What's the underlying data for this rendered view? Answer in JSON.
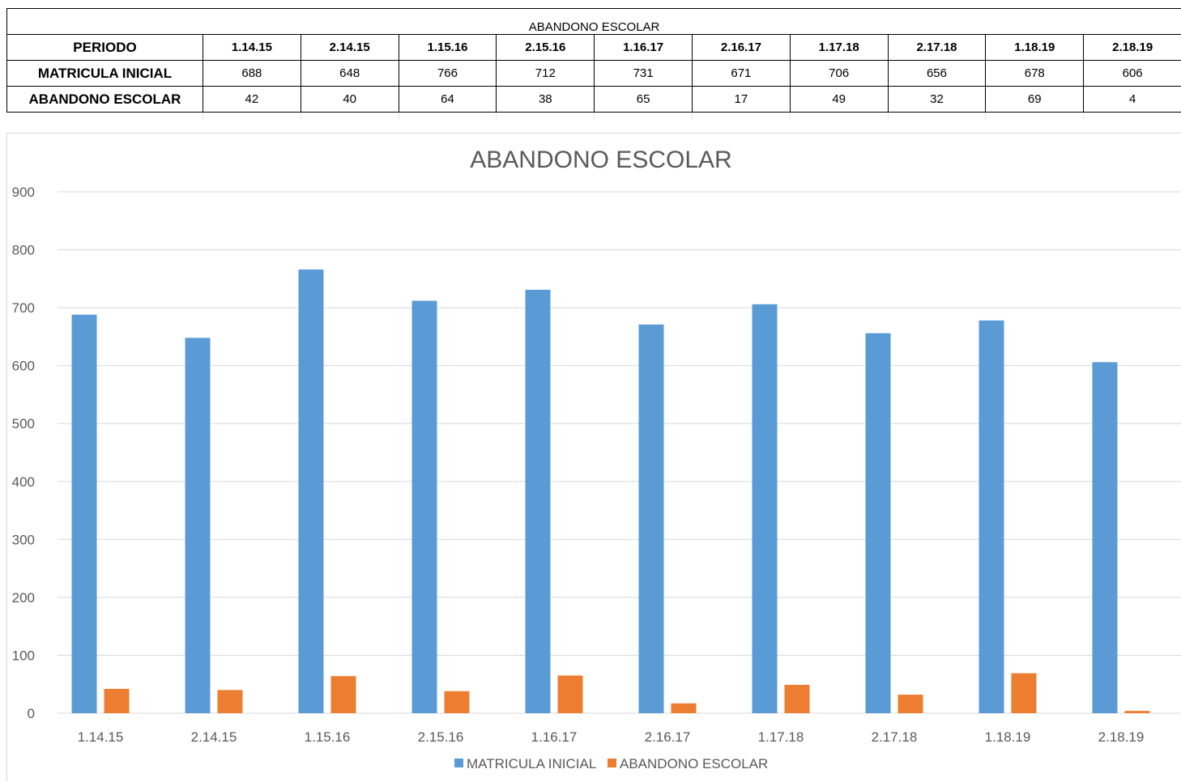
{
  "table": {
    "caption": "ABANDONO ESCOLAR",
    "header_label": "PERIODO",
    "periods": [
      "1.14.15",
      "2.14.15",
      "1.15.16",
      "2.15.16",
      "1.16.17",
      "2.16.17",
      "1.17.18",
      "2.17.18",
      "1.18.19",
      "2.18.19"
    ],
    "rows": [
      {
        "label": "MATRICULA INICIAL",
        "values": [
          "688",
          "648",
          "766",
          "712",
          "731",
          "671",
          "706",
          "656",
          "678",
          "606"
        ]
      },
      {
        "label": "ABANDONO ESCOLAR",
        "values": [
          "42",
          "40",
          "64",
          "38",
          "65",
          "17",
          "49",
          "32",
          "69",
          "4"
        ]
      }
    ]
  },
  "chart_data": {
    "type": "bar",
    "title": "ABANDONO ESCOLAR",
    "xlabel": "",
    "ylabel": "",
    "categories": [
      "1.14.15",
      "2.14.15",
      "1.15.16",
      "2.15.16",
      "1.16.17",
      "2.16.17",
      "1.17.18",
      "2.17.18",
      "1.18.19",
      "2.18.19"
    ],
    "series": [
      {
        "name": "MATRICULA INICIAL",
        "color": "#5B9BD5",
        "values": [
          688,
          648,
          766,
          712,
          731,
          671,
          706,
          656,
          678,
          606
        ]
      },
      {
        "name": "ABANDONO ESCOLAR",
        "color": "#ED7D31",
        "values": [
          42,
          40,
          64,
          38,
          65,
          17,
          49,
          32,
          69,
          4
        ]
      }
    ],
    "ylim": [
      0,
      900
    ],
    "yticks": [
      0,
      100,
      200,
      300,
      400,
      500,
      600,
      700,
      800,
      900
    ],
    "grid": true,
    "legend": "bottom"
  }
}
